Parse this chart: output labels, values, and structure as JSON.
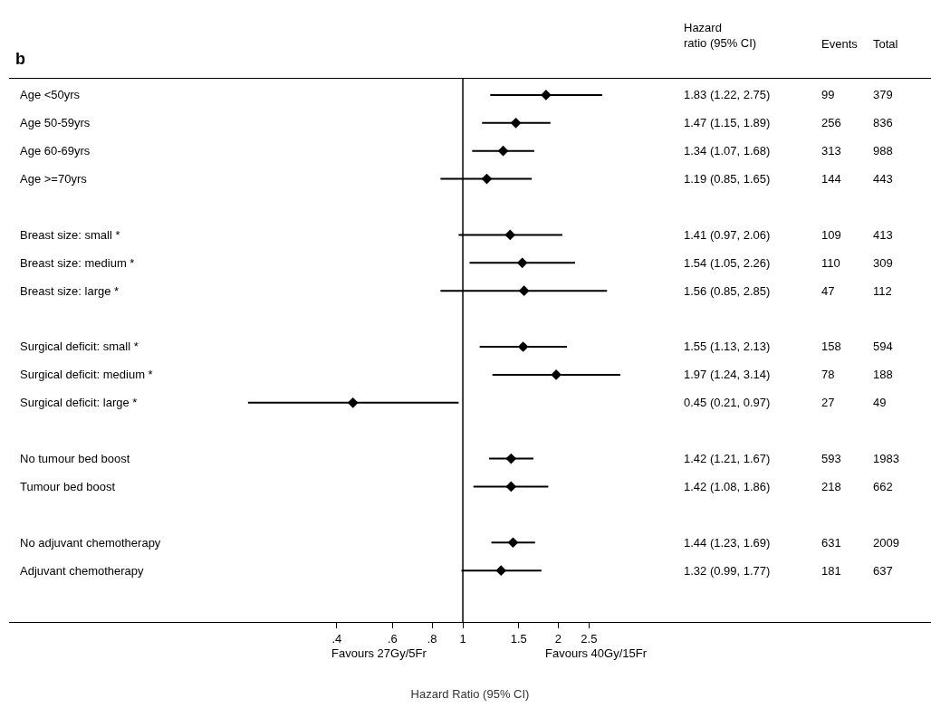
{
  "chart_data": {
    "type": "scatter",
    "orientation": "horizontal",
    "xlabel": "Hazard Ratio (95% CI)",
    "categories": [
      "Age <50yrs",
      "Age 50-59yrs",
      "Age 60-69yrs",
      "Age >=70yrs",
      null,
      "Breast size: small *",
      "Breast size: medium *",
      "Breast size: large *",
      null,
      "Surgical deficit: small *",
      "Surgical deficit: medium *",
      "Surgical deficit: large *",
      null,
      "No tumour bed boost",
      "Tumour bed boost",
      null,
      "No adjuvant chemotherapy",
      "Adjuvant chemotherapy"
    ],
    "values": [
      1.83,
      1.47,
      1.34,
      1.19,
      null,
      1.41,
      1.54,
      1.56,
      null,
      1.55,
      1.97,
      0.45,
      null,
      1.42,
      1.42,
      null,
      1.44,
      1.32
    ],
    "errors": [
      [
        1.22,
        2.75
      ],
      [
        1.15,
        1.89
      ],
      [
        1.07,
        1.68
      ],
      [
        0.85,
        1.65
      ],
      null,
      [
        0.97,
        2.06
      ],
      [
        1.05,
        2.26
      ],
      [
        0.85,
        2.85
      ],
      null,
      [
        1.13,
        2.13
      ],
      [
        1.24,
        3.14
      ],
      [
        0.21,
        0.97
      ],
      null,
      [
        1.21,
        1.67
      ],
      [
        1.08,
        1.86
      ],
      null,
      [
        1.23,
        1.69
      ],
      [
        0.99,
        1.77
      ]
    ],
    "color": "#000000",
    "marker": "diamond",
    "log": "x",
    "xlim": [
      0.037,
      30
    ],
    "xticks": [
      {
        "value": 0.4,
        "label": ".4"
      },
      {
        "value": 0.6,
        "label": ".6"
      },
      {
        "value": 0.8,
        "label": ".8"
      },
      1,
      1.5,
      2,
      2.5
    ],
    "ref_lines": [
      {
        "axis": "x",
        "value": 1,
        "color": "#000000"
      }
    ],
    "tick_labels": "x",
    "legend": false,
    "annotations": [
      "b",
      "Hazard\nratio (95% CI)",
      "Events",
      "Total",
      "Favours 27Gy/5Fr",
      "Favours 40Gy/15Fr",
      "1.83 (1.22, 2.75)",
      "99",
      "379",
      "1.47 (1.15, 1.89)",
      "256",
      "836",
      "1.34 (1.07, 1.68)",
      "313",
      "988",
      "1.19 (0.85, 1.65)",
      "144",
      "443",
      "1.41 (0.97, 2.06)",
      "109",
      "413",
      "1.54 (1.05, 2.26)",
      "110",
      "309",
      "1.56 (0.85, 2.85)",
      "47",
      "112",
      "1.55 (1.13, 2.13)",
      "158",
      "594",
      "1.97 (1.24, 3.14)",
      "78",
      "188",
      "0.45 (0.21, 0.97)",
      "27",
      "49",
      "1.42 (1.21, 1.67)",
      "593",
      "1983",
      "1.42 (1.08, 1.86)",
      "218",
      "662",
      "1.44 (1.23, 1.69)",
      "631",
      "2009",
      "1.32 (0.99, 1.77)",
      "181",
      "637"
    ]
  }
}
